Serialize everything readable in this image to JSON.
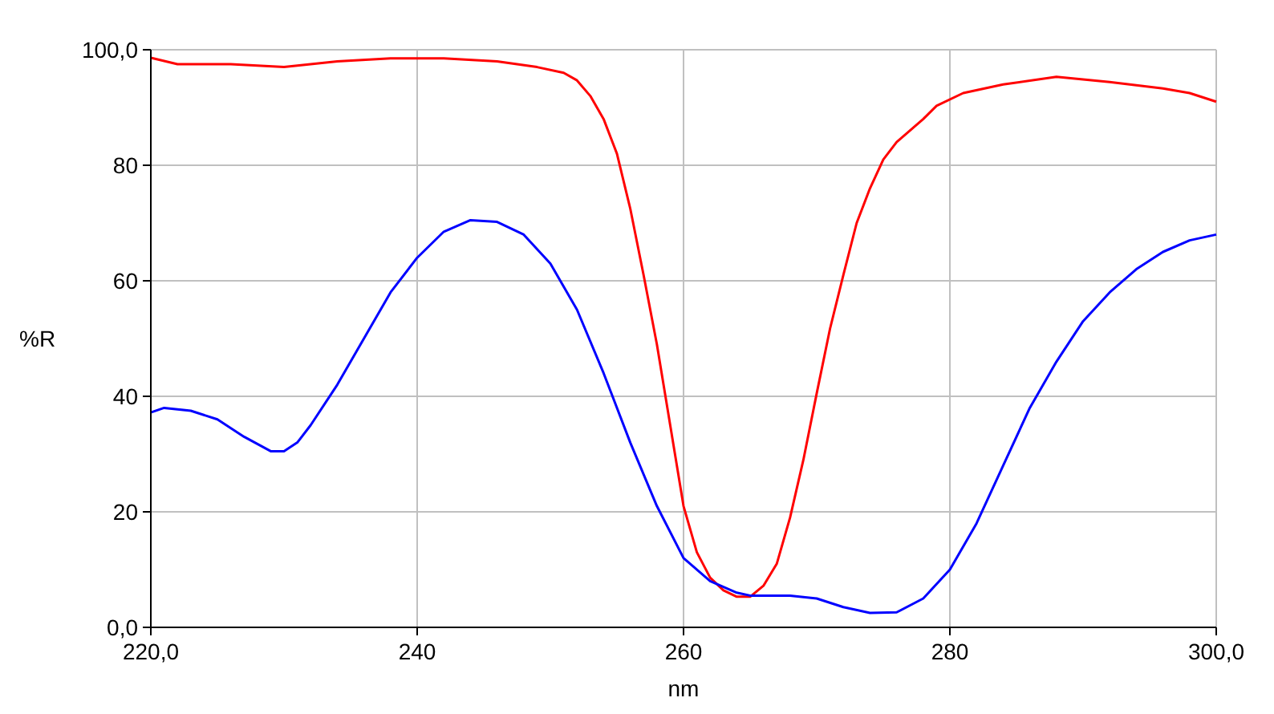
{
  "chart_data": {
    "type": "line",
    "xlabel": "nm",
    "ylabel": "%R",
    "xlim": [
      220,
      300
    ],
    "ylim": [
      0,
      100
    ],
    "xticks": [
      {
        "value": 220,
        "label": "220,0"
      },
      240,
      260,
      280,
      {
        "value": 300,
        "label": "300,0"
      }
    ],
    "yticks": [
      {
        "value": 0,
        "label": "0,0"
      },
      20,
      40,
      60,
      80,
      {
        "value": 100,
        "label": "100,0"
      }
    ],
    "grid": true,
    "line_style": "solid",
    "series": [
      {
        "color": "#ff0000",
        "x": [
          220,
          222,
          226,
          230,
          234,
          238,
          242,
          246,
          249,
          251,
          252,
          253,
          254,
          255,
          256,
          257,
          258,
          259,
          260,
          261,
          262,
          263,
          264,
          265,
          266,
          267,
          268,
          269,
          270,
          271,
          272,
          273,
          274,
          275,
          276,
          278,
          279,
          281,
          284,
          288,
          292,
          296,
          298,
          300
        ],
        "values": [
          98.6,
          97.5,
          97.5,
          97,
          98,
          98.5,
          98.5,
          98,
          97,
          96,
          94.7,
          92,
          88,
          82,
          72.5,
          61,
          49,
          35,
          21,
          13,
          8.6,
          6.4,
          5.3,
          5.3,
          7.2,
          11,
          19,
          29,
          40.5,
          51.7,
          61,
          70,
          76,
          81,
          84,
          88,
          90.3,
          92.5,
          94,
          95.3,
          94.4,
          93.3,
          92.5,
          91
        ]
      },
      {
        "color": "#0000ff",
        "x": [
          220,
          221,
          223,
          225,
          227,
          229,
          230,
          231,
          232,
          234,
          236,
          238,
          240,
          242,
          244,
          246,
          248,
          250,
          252,
          254,
          256,
          258,
          260,
          262,
          264,
          265,
          268,
          270,
          272,
          274,
          276,
          278,
          280,
          282,
          284,
          286,
          288,
          290,
          292,
          294,
          296,
          298,
          300
        ],
        "values": [
          37.2,
          38,
          37.5,
          36,
          33,
          30.5,
          30.5,
          32,
          35,
          42,
          50,
          58,
          64,
          68.5,
          70.5,
          70.2,
          68,
          63,
          55,
          44,
          32,
          21,
          12,
          8,
          6,
          5.5,
          5.5,
          5,
          3.5,
          2.5,
          2.6,
          5,
          10,
          18,
          28,
          38,
          46,
          53,
          58,
          62,
          65,
          67,
          68
        ]
      }
    ]
  }
}
